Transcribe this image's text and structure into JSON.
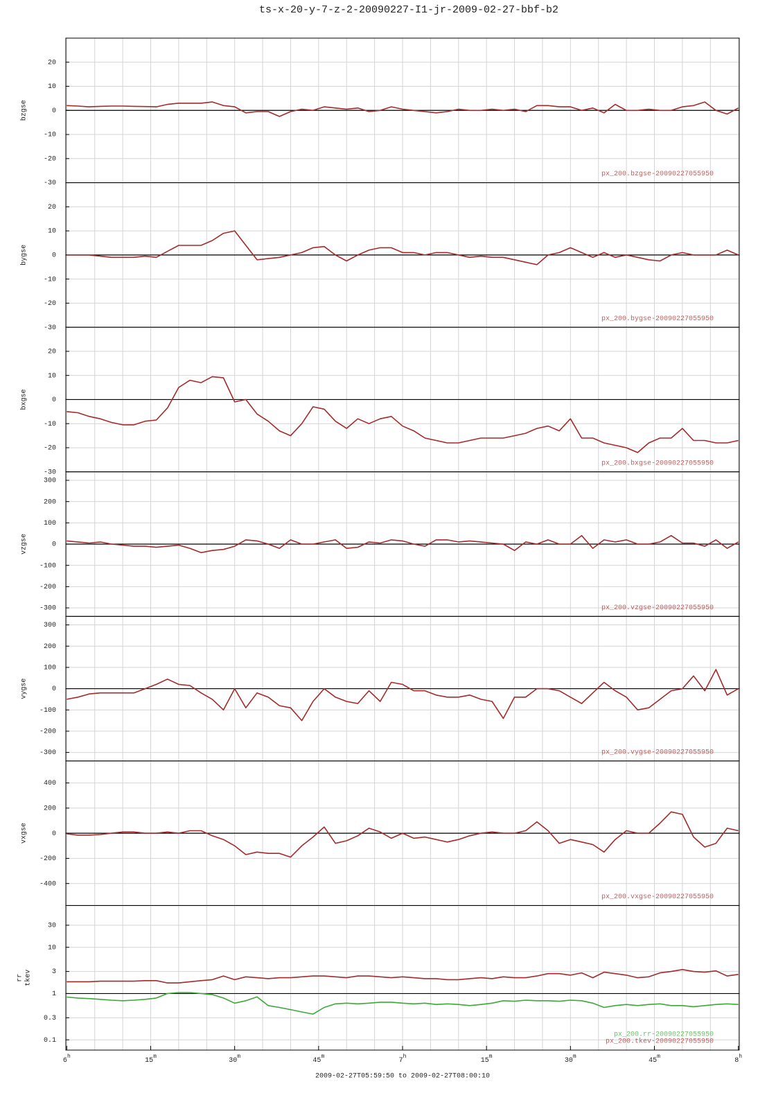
{
  "title": "ts-x-20-y-7-z-2-20090227-I1-jr-2009-02-27-bbf-b2",
  "chart_data": [
    {
      "type": "line",
      "ylabel": "bzgse",
      "xlim": [
        "05:59:50",
        "08:00:10"
      ],
      "ylim": [
        -30,
        30
      ],
      "yticks": [
        20,
        10,
        0,
        -10,
        -20,
        -30
      ],
      "hline": 0,
      "grid": true,
      "x": [
        "06:00",
        "06:02",
        "06:04",
        "06:06",
        "06:08",
        "06:10",
        "06:12",
        "06:14",
        "06:16",
        "06:18",
        "06:20",
        "06:22",
        "06:24",
        "06:26",
        "06:28",
        "06:30",
        "06:32",
        "06:34",
        "06:36",
        "06:38",
        "06:40",
        "06:42",
        "06:44",
        "06:46",
        "06:48",
        "06:50",
        "06:52",
        "06:54",
        "06:56",
        "06:58",
        "07:00",
        "07:02",
        "07:04",
        "07:06",
        "07:08",
        "07:10",
        "07:12",
        "07:14",
        "07:16",
        "07:18",
        "07:20",
        "07:22",
        "07:24",
        "07:26",
        "07:28",
        "07:30",
        "07:32",
        "07:34",
        "07:36",
        "07:38",
        "07:40",
        "07:42",
        "07:44",
        "07:46",
        "07:48",
        "07:50",
        "07:52",
        "07:54",
        "07:56",
        "07:58",
        "08:00"
      ],
      "series": [
        {
          "name": "px_200.bzgse-20090227055950",
          "color": "#a52a2a",
          "values": [
            2,
            1.8,
            1.5,
            1.7,
            1.8,
            1.8,
            1.7,
            1.6,
            1.5,
            2.5,
            3,
            3,
            3,
            3.5,
            2,
            1.5,
            -1,
            -0.5,
            -0.5,
            -2.5,
            -0.5,
            0.5,
            0,
            1.5,
            1,
            0.5,
            1,
            -0.5,
            0,
            1.5,
            0.5,
            0,
            -0.5,
            -1,
            -0.5,
            0.5,
            0,
            0,
            0.5,
            0,
            0.5,
            -0.5,
            2,
            2,
            1.5,
            1.5,
            0,
            1,
            -1,
            2.5,
            0,
            0,
            0.5,
            0,
            0,
            1.5,
            2,
            3.5,
            0,
            -1.5,
            1
          ]
        }
      ]
    },
    {
      "type": "line",
      "ylabel": "bygse",
      "xlim": [
        "05:59:50",
        "08:00:10"
      ],
      "ylim": [
        -30,
        30
      ],
      "yticks": [
        20,
        10,
        0,
        -10,
        -20,
        -30
      ],
      "hline": 0,
      "grid": true,
      "x": [
        "06:00",
        "06:02",
        "06:04",
        "06:06",
        "06:08",
        "06:10",
        "06:12",
        "06:14",
        "06:16",
        "06:18",
        "06:20",
        "06:22",
        "06:24",
        "06:26",
        "06:28",
        "06:30",
        "06:32",
        "06:34",
        "06:36",
        "06:38",
        "06:40",
        "06:42",
        "06:44",
        "06:46",
        "06:48",
        "06:50",
        "06:52",
        "06:54",
        "06:56",
        "06:58",
        "07:00",
        "07:02",
        "07:04",
        "07:06",
        "07:08",
        "07:10",
        "07:12",
        "07:14",
        "07:16",
        "07:18",
        "07:20",
        "07:22",
        "07:24",
        "07:26",
        "07:28",
        "07:30",
        "07:32",
        "07:34",
        "07:36",
        "07:38",
        "07:40",
        "07:42",
        "07:44",
        "07:46",
        "07:48",
        "07:50",
        "07:52",
        "07:54",
        "07:56",
        "07:58",
        "08:00"
      ],
      "series": [
        {
          "name": "px_200.bygse-20090227055950",
          "color": "#a52a2a",
          "values": [
            0,
            0,
            0,
            -0.5,
            -1,
            -1,
            -1,
            -0.5,
            -1,
            1.5,
            4,
            4,
            4,
            6,
            9,
            10,
            4,
            -2,
            -1.5,
            -1,
            0,
            1,
            3,
            3.5,
            0,
            -2.5,
            0,
            2,
            3,
            3,
            1,
            1,
            0,
            1,
            1,
            0,
            -1,
            -0.5,
            -1,
            -1,
            -2,
            -3,
            -4,
            0,
            1,
            3,
            1,
            -1,
            1,
            -1,
            0,
            -1,
            -2,
            -2.5,
            0,
            1,
            0,
            0,
            0,
            2,
            0
          ]
        }
      ]
    },
    {
      "type": "line",
      "ylabel": "bxgse",
      "xlim": [
        "05:59:50",
        "08:00:10"
      ],
      "ylim": [
        -30,
        30
      ],
      "yticks": [
        20,
        10,
        0,
        -10,
        -20,
        -30
      ],
      "hline": 0,
      "grid": true,
      "x": [
        "06:00",
        "06:02",
        "06:04",
        "06:06",
        "06:08",
        "06:10",
        "06:12",
        "06:14",
        "06:16",
        "06:18",
        "06:20",
        "06:22",
        "06:24",
        "06:26",
        "06:28",
        "06:30",
        "06:32",
        "06:34",
        "06:36",
        "06:38",
        "06:40",
        "06:42",
        "06:44",
        "06:46",
        "06:48",
        "06:50",
        "06:52",
        "06:54",
        "06:56",
        "06:58",
        "07:00",
        "07:02",
        "07:04",
        "07:06",
        "07:08",
        "07:10",
        "07:12",
        "07:14",
        "07:16",
        "07:18",
        "07:20",
        "07:22",
        "07:24",
        "07:26",
        "07:28",
        "07:30",
        "07:32",
        "07:34",
        "07:36",
        "07:38",
        "07:40",
        "07:42",
        "07:44",
        "07:46",
        "07:48",
        "07:50",
        "07:52",
        "07:54",
        "07:56",
        "07:58",
        "08:00"
      ],
      "series": [
        {
          "name": "px_200.bxgse-20090227055950",
          "color": "#a52a2a",
          "values": [
            -5,
            -5.5,
            -7,
            -8,
            -9.5,
            -10.5,
            -10.5,
            -9,
            -8.5,
            -3.5,
            5,
            8,
            7,
            9.5,
            9,
            -1,
            0,
            -6,
            -9,
            -13,
            -15,
            -10,
            -3,
            -4,
            -9,
            -12,
            -8,
            -10,
            -8,
            -7,
            -11,
            -13,
            -16,
            -17,
            -18,
            -18,
            -17,
            -16,
            -16,
            -16,
            -15,
            -14,
            -12,
            -11,
            -13,
            -8,
            -16,
            -16,
            -18,
            -19,
            -20,
            -22,
            -18,
            -16,
            -16,
            -12,
            -17,
            -17,
            -18,
            -18,
            -17
          ]
        }
      ]
    },
    {
      "type": "line",
      "ylabel": "vzgse",
      "xlim": [
        "05:59:50",
        "08:00:10"
      ],
      "ylim": [
        -340,
        340
      ],
      "yticks": [
        300,
        200,
        100,
        0,
        -100,
        -200,
        -300
      ],
      "hline": 0,
      "grid": true,
      "x": [
        "06:00",
        "06:02",
        "06:04",
        "06:06",
        "06:08",
        "06:10",
        "06:12",
        "06:14",
        "06:16",
        "06:18",
        "06:20",
        "06:22",
        "06:24",
        "06:26",
        "06:28",
        "06:30",
        "06:32",
        "06:34",
        "06:36",
        "06:38",
        "06:40",
        "06:42",
        "06:44",
        "06:46",
        "06:48",
        "06:50",
        "06:52",
        "06:54",
        "06:56",
        "06:58",
        "07:00",
        "07:02",
        "07:04",
        "07:06",
        "07:08",
        "07:10",
        "07:12",
        "07:14",
        "07:16",
        "07:18",
        "07:20",
        "07:22",
        "07:24",
        "07:26",
        "07:28",
        "07:30",
        "07:32",
        "07:34",
        "07:36",
        "07:38",
        "07:40",
        "07:42",
        "07:44",
        "07:46",
        "07:48",
        "07:50",
        "07:52",
        "07:54",
        "07:56",
        "07:58",
        "08:00"
      ],
      "series": [
        {
          "name": "px_200.vzgse-20090227055950",
          "color": "#a52a2a",
          "values": [
            15,
            10,
            5,
            10,
            0,
            -5,
            -10,
            -10,
            -15,
            -10,
            -5,
            -20,
            -40,
            -30,
            -25,
            -10,
            20,
            15,
            0,
            -20,
            20,
            0,
            0,
            10,
            20,
            -20,
            -15,
            10,
            5,
            20,
            15,
            0,
            -10,
            20,
            20,
            10,
            15,
            10,
            5,
            0,
            -30,
            10,
            0,
            20,
            0,
            0,
            40,
            -20,
            20,
            10,
            20,
            0,
            0,
            10,
            40,
            5,
            5,
            -10,
            20,
            -20,
            10
          ]
        }
      ]
    },
    {
      "type": "line",
      "ylabel": "vygse",
      "xlim": [
        "05:59:50",
        "08:00:10"
      ],
      "ylim": [
        -340,
        340
      ],
      "yticks": [
        300,
        200,
        100,
        0,
        -100,
        -200,
        -300
      ],
      "hline": 0,
      "grid": true,
      "x": [
        "06:00",
        "06:02",
        "06:04",
        "06:06",
        "06:08",
        "06:10",
        "06:12",
        "06:14",
        "06:16",
        "06:18",
        "06:20",
        "06:22",
        "06:24",
        "06:26",
        "06:28",
        "06:30",
        "06:32",
        "06:34",
        "06:36",
        "06:38",
        "06:40",
        "06:42",
        "06:44",
        "06:46",
        "06:48",
        "06:50",
        "06:52",
        "06:54",
        "06:56",
        "06:58",
        "07:00",
        "07:02",
        "07:04",
        "07:06",
        "07:08",
        "07:10",
        "07:12",
        "07:14",
        "07:16",
        "07:18",
        "07:20",
        "07:22",
        "07:24",
        "07:26",
        "07:28",
        "07:30",
        "07:32",
        "07:34",
        "07:36",
        "07:38",
        "07:40",
        "07:42",
        "07:44",
        "07:46",
        "07:48",
        "07:50",
        "07:52",
        "07:54",
        "07:56",
        "07:58",
        "08:00"
      ],
      "series": [
        {
          "name": "px_200.vygse-20090227055950",
          "color": "#a52a2a",
          "values": [
            -50,
            -40,
            -25,
            -20,
            -20,
            -20,
            -20,
            0,
            20,
            45,
            20,
            15,
            -20,
            -50,
            -100,
            0,
            -90,
            -20,
            -40,
            -80,
            -90,
            -150,
            -60,
            0,
            -40,
            -60,
            -70,
            -10,
            -60,
            30,
            20,
            -10,
            -10,
            -30,
            -40,
            -40,
            -30,
            -50,
            -60,
            -140,
            -40,
            -40,
            0,
            0,
            -10,
            -40,
            -70,
            -20,
            30,
            -10,
            -40,
            -100,
            -90,
            -50,
            -10,
            0,
            60,
            -10,
            90,
            -30,
            0
          ]
        }
      ]
    },
    {
      "type": "line",
      "ylabel": "vxgse",
      "xlim": [
        "05:59:50",
        "08:00:10"
      ],
      "ylim": [
        -575,
        575
      ],
      "yticks": [
        400,
        200,
        0,
        -200,
        -400
      ],
      "hline": 0,
      "grid": true,
      "x": [
        "06:00",
        "06:02",
        "06:04",
        "06:06",
        "06:08",
        "06:10",
        "06:12",
        "06:14",
        "06:16",
        "06:18",
        "06:20",
        "06:22",
        "06:24",
        "06:26",
        "06:28",
        "06:30",
        "06:32",
        "06:34",
        "06:36",
        "06:38",
        "06:40",
        "06:42",
        "06:44",
        "06:46",
        "06:48",
        "06:50",
        "06:52",
        "06:54",
        "06:56",
        "06:58",
        "07:00",
        "07:02",
        "07:04",
        "07:06",
        "07:08",
        "07:10",
        "07:12",
        "07:14",
        "07:16",
        "07:18",
        "07:20",
        "07:22",
        "07:24",
        "07:26",
        "07:28",
        "07:30",
        "07:32",
        "07:34",
        "07:36",
        "07:38",
        "07:40",
        "07:42",
        "07:44",
        "07:46",
        "07:48",
        "07:50",
        "07:52",
        "07:54",
        "07:56",
        "07:58",
        "08:00"
      ],
      "series": [
        {
          "name": "px_200.vxgse-20090227055950",
          "color": "#a52a2a",
          "values": [
            -5,
            -15,
            -15,
            -10,
            0,
            10,
            10,
            0,
            0,
            10,
            0,
            20,
            20,
            -20,
            -50,
            -100,
            -170,
            -150,
            -160,
            -160,
            -190,
            -100,
            -30,
            50,
            -80,
            -60,
            -20,
            40,
            10,
            -40,
            0,
            -40,
            -30,
            -50,
            -70,
            -50,
            -20,
            0,
            10,
            0,
            0,
            20,
            90,
            20,
            -80,
            -50,
            -70,
            -90,
            -150,
            -50,
            20,
            0,
            0,
            80,
            170,
            150,
            -30,
            -110,
            -80,
            40,
            20
          ]
        }
      ]
    },
    {
      "type": "line",
      "ylabel": [
        "rr",
        "tkev"
      ],
      "log": true,
      "xlim": [
        "05:59:50",
        "08:00:10"
      ],
      "ylim": [
        0.06,
        80
      ],
      "yticks": [
        30,
        10,
        3,
        1,
        0.3,
        0.1
      ],
      "hline": 1,
      "grid": true,
      "xticks": [
        {
          "value": "06:00",
          "label": "6h"
        },
        {
          "value": "06:15",
          "label": "15m"
        },
        {
          "value": "06:30",
          "label": "30m"
        },
        {
          "value": "06:45",
          "label": "45m"
        },
        {
          "value": "07:00",
          "label": "7h"
        },
        {
          "value": "07:15",
          "label": "15m"
        },
        {
          "value": "07:30",
          "label": "30m"
        },
        {
          "value": "07:45",
          "label": "45m"
        },
        {
          "value": "08:00",
          "label": "8h"
        }
      ],
      "xlabel": "2009-02-27T05:59:50 to 2009-02-27T08:00:10",
      "x": [
        "06:00",
        "06:02",
        "06:04",
        "06:06",
        "06:08",
        "06:10",
        "06:12",
        "06:14",
        "06:16",
        "06:18",
        "06:20",
        "06:22",
        "06:24",
        "06:26",
        "06:28",
        "06:30",
        "06:32",
        "06:34",
        "06:36",
        "06:38",
        "06:40",
        "06:42",
        "06:44",
        "06:46",
        "06:48",
        "06:50",
        "06:52",
        "06:54",
        "06:56",
        "06:58",
        "07:00",
        "07:02",
        "07:04",
        "07:06",
        "07:08",
        "07:10",
        "07:12",
        "07:14",
        "07:16",
        "07:18",
        "07:20",
        "07:22",
        "07:24",
        "07:26",
        "07:28",
        "07:30",
        "07:32",
        "07:34",
        "07:36",
        "07:38",
        "07:40",
        "07:42",
        "07:44",
        "07:46",
        "07:48",
        "07:50",
        "07:52",
        "07:54",
        "07:56",
        "07:58",
        "08:00"
      ],
      "series": [
        {
          "name": "px_200.rr-20090227055950",
          "color": "#3aaa35",
          "values": [
            0.84,
            0.8,
            0.78,
            0.75,
            0.72,
            0.7,
            0.72,
            0.75,
            0.8,
            1.0,
            1.05,
            1.05,
            1.0,
            0.95,
            0.8,
            0.62,
            0.7,
            0.85,
            0.55,
            0.5,
            0.45,
            0.4,
            0.36,
            0.5,
            0.6,
            0.62,
            0.6,
            0.62,
            0.65,
            0.65,
            0.62,
            0.6,
            0.62,
            0.58,
            0.6,
            0.58,
            0.55,
            0.58,
            0.62,
            0.7,
            0.68,
            0.72,
            0.7,
            0.7,
            0.68,
            0.72,
            0.7,
            0.62,
            0.5,
            0.55,
            0.58,
            0.55,
            0.58,
            0.6,
            0.55,
            0.55,
            0.52,
            0.55,
            0.58,
            0.6,
            0.58
          ]
        },
        {
          "name": "px_200.tkev-20090227055950",
          "color": "#a52a2a",
          "values": [
            1.8,
            1.8,
            1.8,
            1.85,
            1.85,
            1.85,
            1.85,
            1.9,
            1.9,
            1.7,
            1.7,
            1.8,
            1.9,
            2.0,
            2.4,
            2.0,
            2.3,
            2.2,
            2.1,
            2.2,
            2.2,
            2.3,
            2.4,
            2.4,
            2.3,
            2.2,
            2.4,
            2.4,
            2.3,
            2.2,
            2.3,
            2.2,
            2.1,
            2.1,
            2.0,
            2.0,
            2.1,
            2.2,
            2.1,
            2.3,
            2.2,
            2.2,
            2.4,
            2.7,
            2.7,
            2.5,
            2.8,
            2.2,
            2.9,
            2.7,
            2.5,
            2.2,
            2.3,
            2.8,
            3.0,
            3.3,
            3.0,
            2.9,
            3.1,
            2.4,
            2.6
          ]
        }
      ]
    }
  ]
}
